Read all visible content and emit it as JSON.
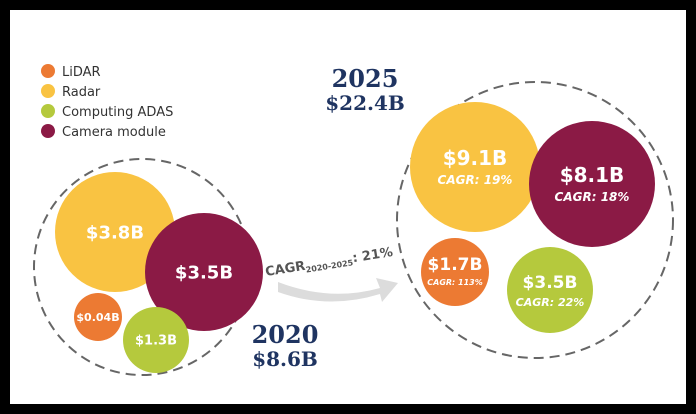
{
  "chart_data": {
    "type": "bubble",
    "legend": [
      {
        "name": "LiDAR",
        "color": "#ec7a33"
      },
      {
        "name": "Radar",
        "color": "#f9c342"
      },
      {
        "name": "Computing ADAS",
        "color": "#b5c93d"
      },
      {
        "name": "Camera module",
        "color": "#8b1a45"
      }
    ],
    "growth": {
      "label_prefix": "CAGR",
      "label_sub": "2020-2025",
      "label_value": ": 21%",
      "value": 21
    },
    "groups": [
      {
        "year": "2020",
        "total": "$8.6B",
        "total_value": 8.6,
        "items": [
          {
            "segment": "Radar",
            "label": "$3.8B",
            "value": 3.8,
            "color": "#f9c342"
          },
          {
            "segment": "Camera module",
            "label": "$3.5B",
            "value": 3.5,
            "color": "#8b1a45"
          },
          {
            "segment": "LiDAR",
            "label": "$0.04B",
            "value": 0.04,
            "color": "#ec7a33"
          },
          {
            "segment": "Computing ADAS",
            "label": "$1.3B",
            "value": 1.3,
            "color": "#b5c93d"
          }
        ]
      },
      {
        "year": "2025",
        "total": "$22.4B",
        "total_value": 22.4,
        "items": [
          {
            "segment": "Radar",
            "label": "$9.1B",
            "value": 9.1,
            "cagr": "CAGR: 19%",
            "color": "#f9c342"
          },
          {
            "segment": "Camera module",
            "label": "$8.1B",
            "value": 8.1,
            "cagr": "CAGR: 18%",
            "color": "#8b1a45"
          },
          {
            "segment": "LiDAR",
            "label": "$1.7B",
            "value": 1.7,
            "cagr": "CAGR: 113%",
            "color": "#ec7a33"
          },
          {
            "segment": "Computing ADAS",
            "label": "$3.5B",
            "value": 3.5,
            "cagr": "CAGR: 22%",
            "color": "#b5c93d"
          }
        ]
      }
    ]
  }
}
